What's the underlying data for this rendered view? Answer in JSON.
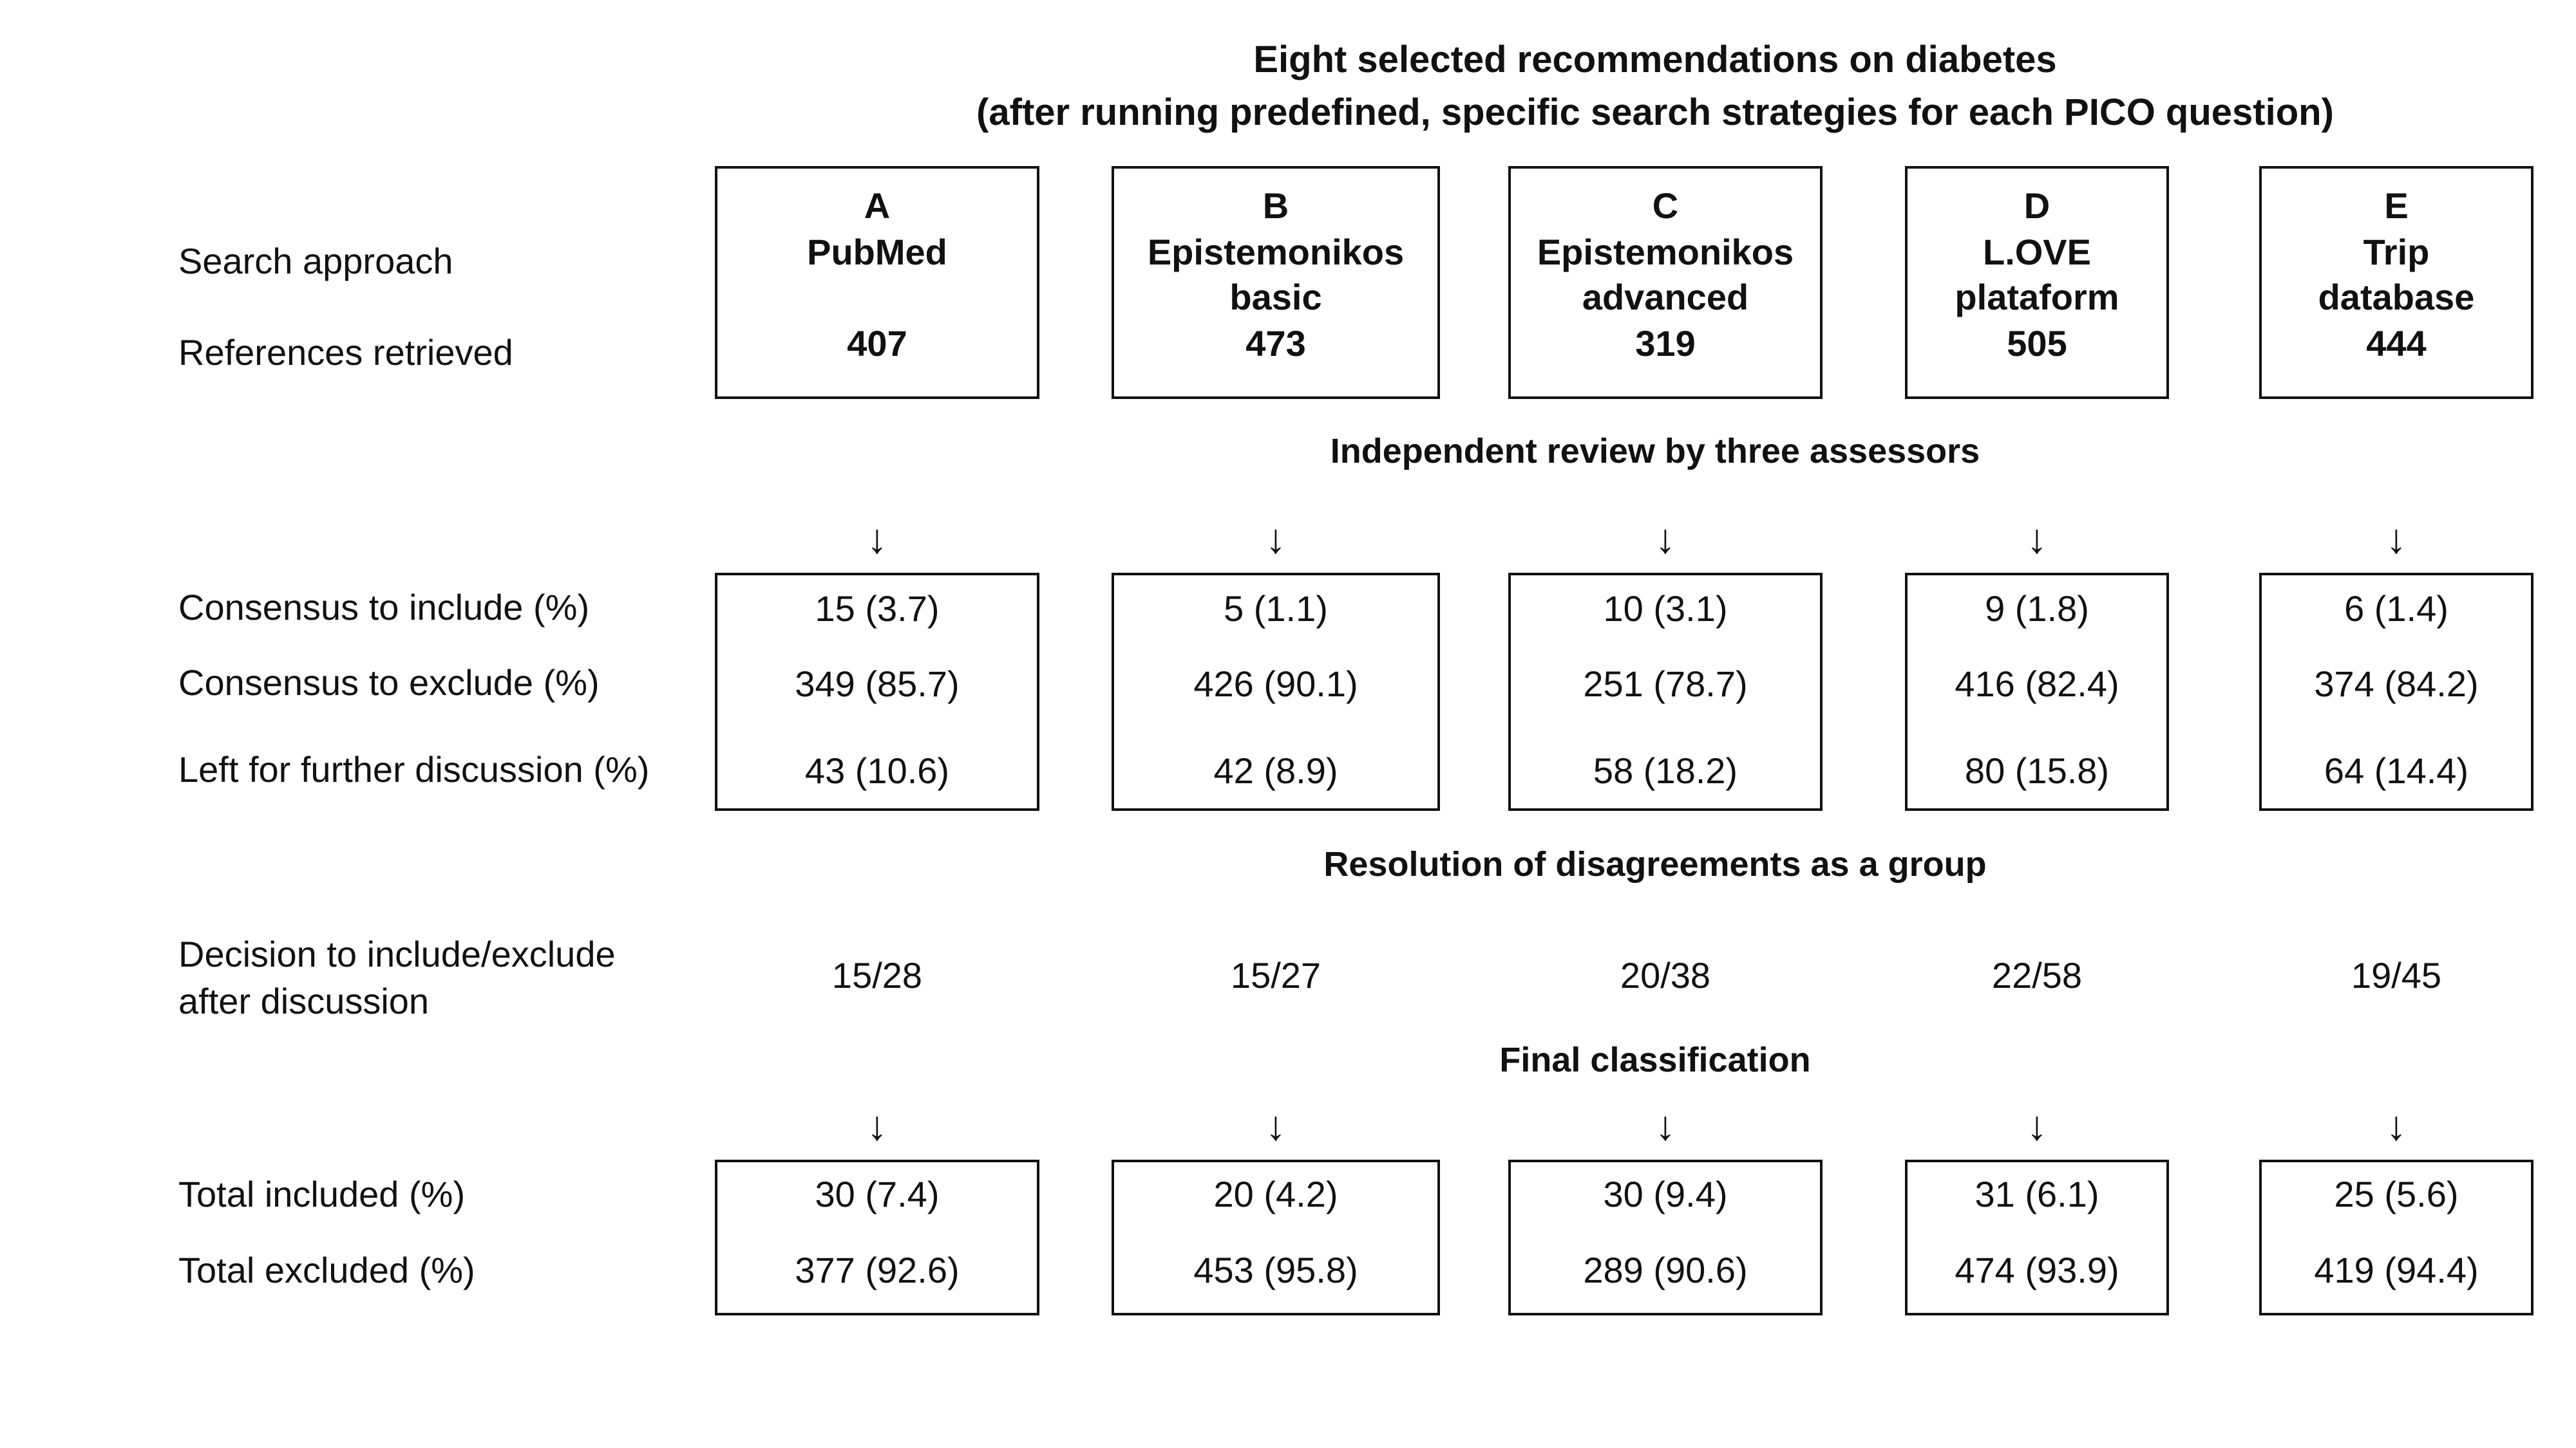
{
  "title": {
    "line1": "Eight selected recommendations  on diabetes",
    "line2": "(after running  predefined, specific search strategies for each PICO question)"
  },
  "row_labels": {
    "search_approach": "Search approach",
    "references_retrieved": "References retrieved",
    "consensus_include": "Consensus to include (%)",
    "consensus_exclude": "Consensus to exclude (%)",
    "further_discussion": "Left for further discussion (%)",
    "decision_line1": "Decision to include/exclude",
    "decision_line2": "after discussion",
    "total_included": "Total included (%)",
    "total_excluded": "Total excluded (%)"
  },
  "sections": {
    "review": "Independent review by three assessors",
    "resolution": "Resolution of disagreements as a group",
    "final": "Final classification"
  },
  "arrow_glyph": "↓",
  "approaches": [
    {
      "letter": "A",
      "name1": "PubMed",
      "name2": "",
      "references": "407",
      "include": "15 (3.7)",
      "exclude": "349 (85.7)",
      "discussion": "43 (10.6)",
      "decision": "15/28",
      "total_included": "30 (7.4)",
      "total_excluded": "377  (92.6)"
    },
    {
      "letter": "B",
      "name1": "Epistemonikos",
      "name2": "basic",
      "references": "473",
      "include": "5 (1.1)",
      "exclude": "426 (90.1)",
      "discussion": "42 (8.9)",
      "decision": "15/27",
      "total_included": "20 (4.2)",
      "total_excluded": "453 (95.8)"
    },
    {
      "letter": "C",
      "name1": "Epistemonikos",
      "name2": "advanced",
      "references": "319",
      "include": "10 (3.1)",
      "exclude": "251 (78.7)",
      "discussion": "58 (18.2)",
      "decision": "20/38",
      "total_included": "30 (9.4)",
      "total_excluded": "289 (90.6)"
    },
    {
      "letter": "D",
      "name1": "L.OVE",
      "name2": "plataform",
      "references": "505",
      "include": "9 (1.8)",
      "exclude": "416 (82.4)",
      "discussion": "80 (15.8)",
      "decision": "22/58",
      "total_included": "31 (6.1)",
      "total_excluded": "474 (93.9)"
    },
    {
      "letter": "E",
      "name1": "Trip",
      "name2": "database",
      "references": "444",
      "include": "6 (1.4)",
      "exclude": "374 (84.2)",
      "discussion": "64 (14.4)",
      "decision": "19/45",
      "total_included": "25 (5.6)",
      "total_excluded": "419 (94.4)"
    }
  ]
}
